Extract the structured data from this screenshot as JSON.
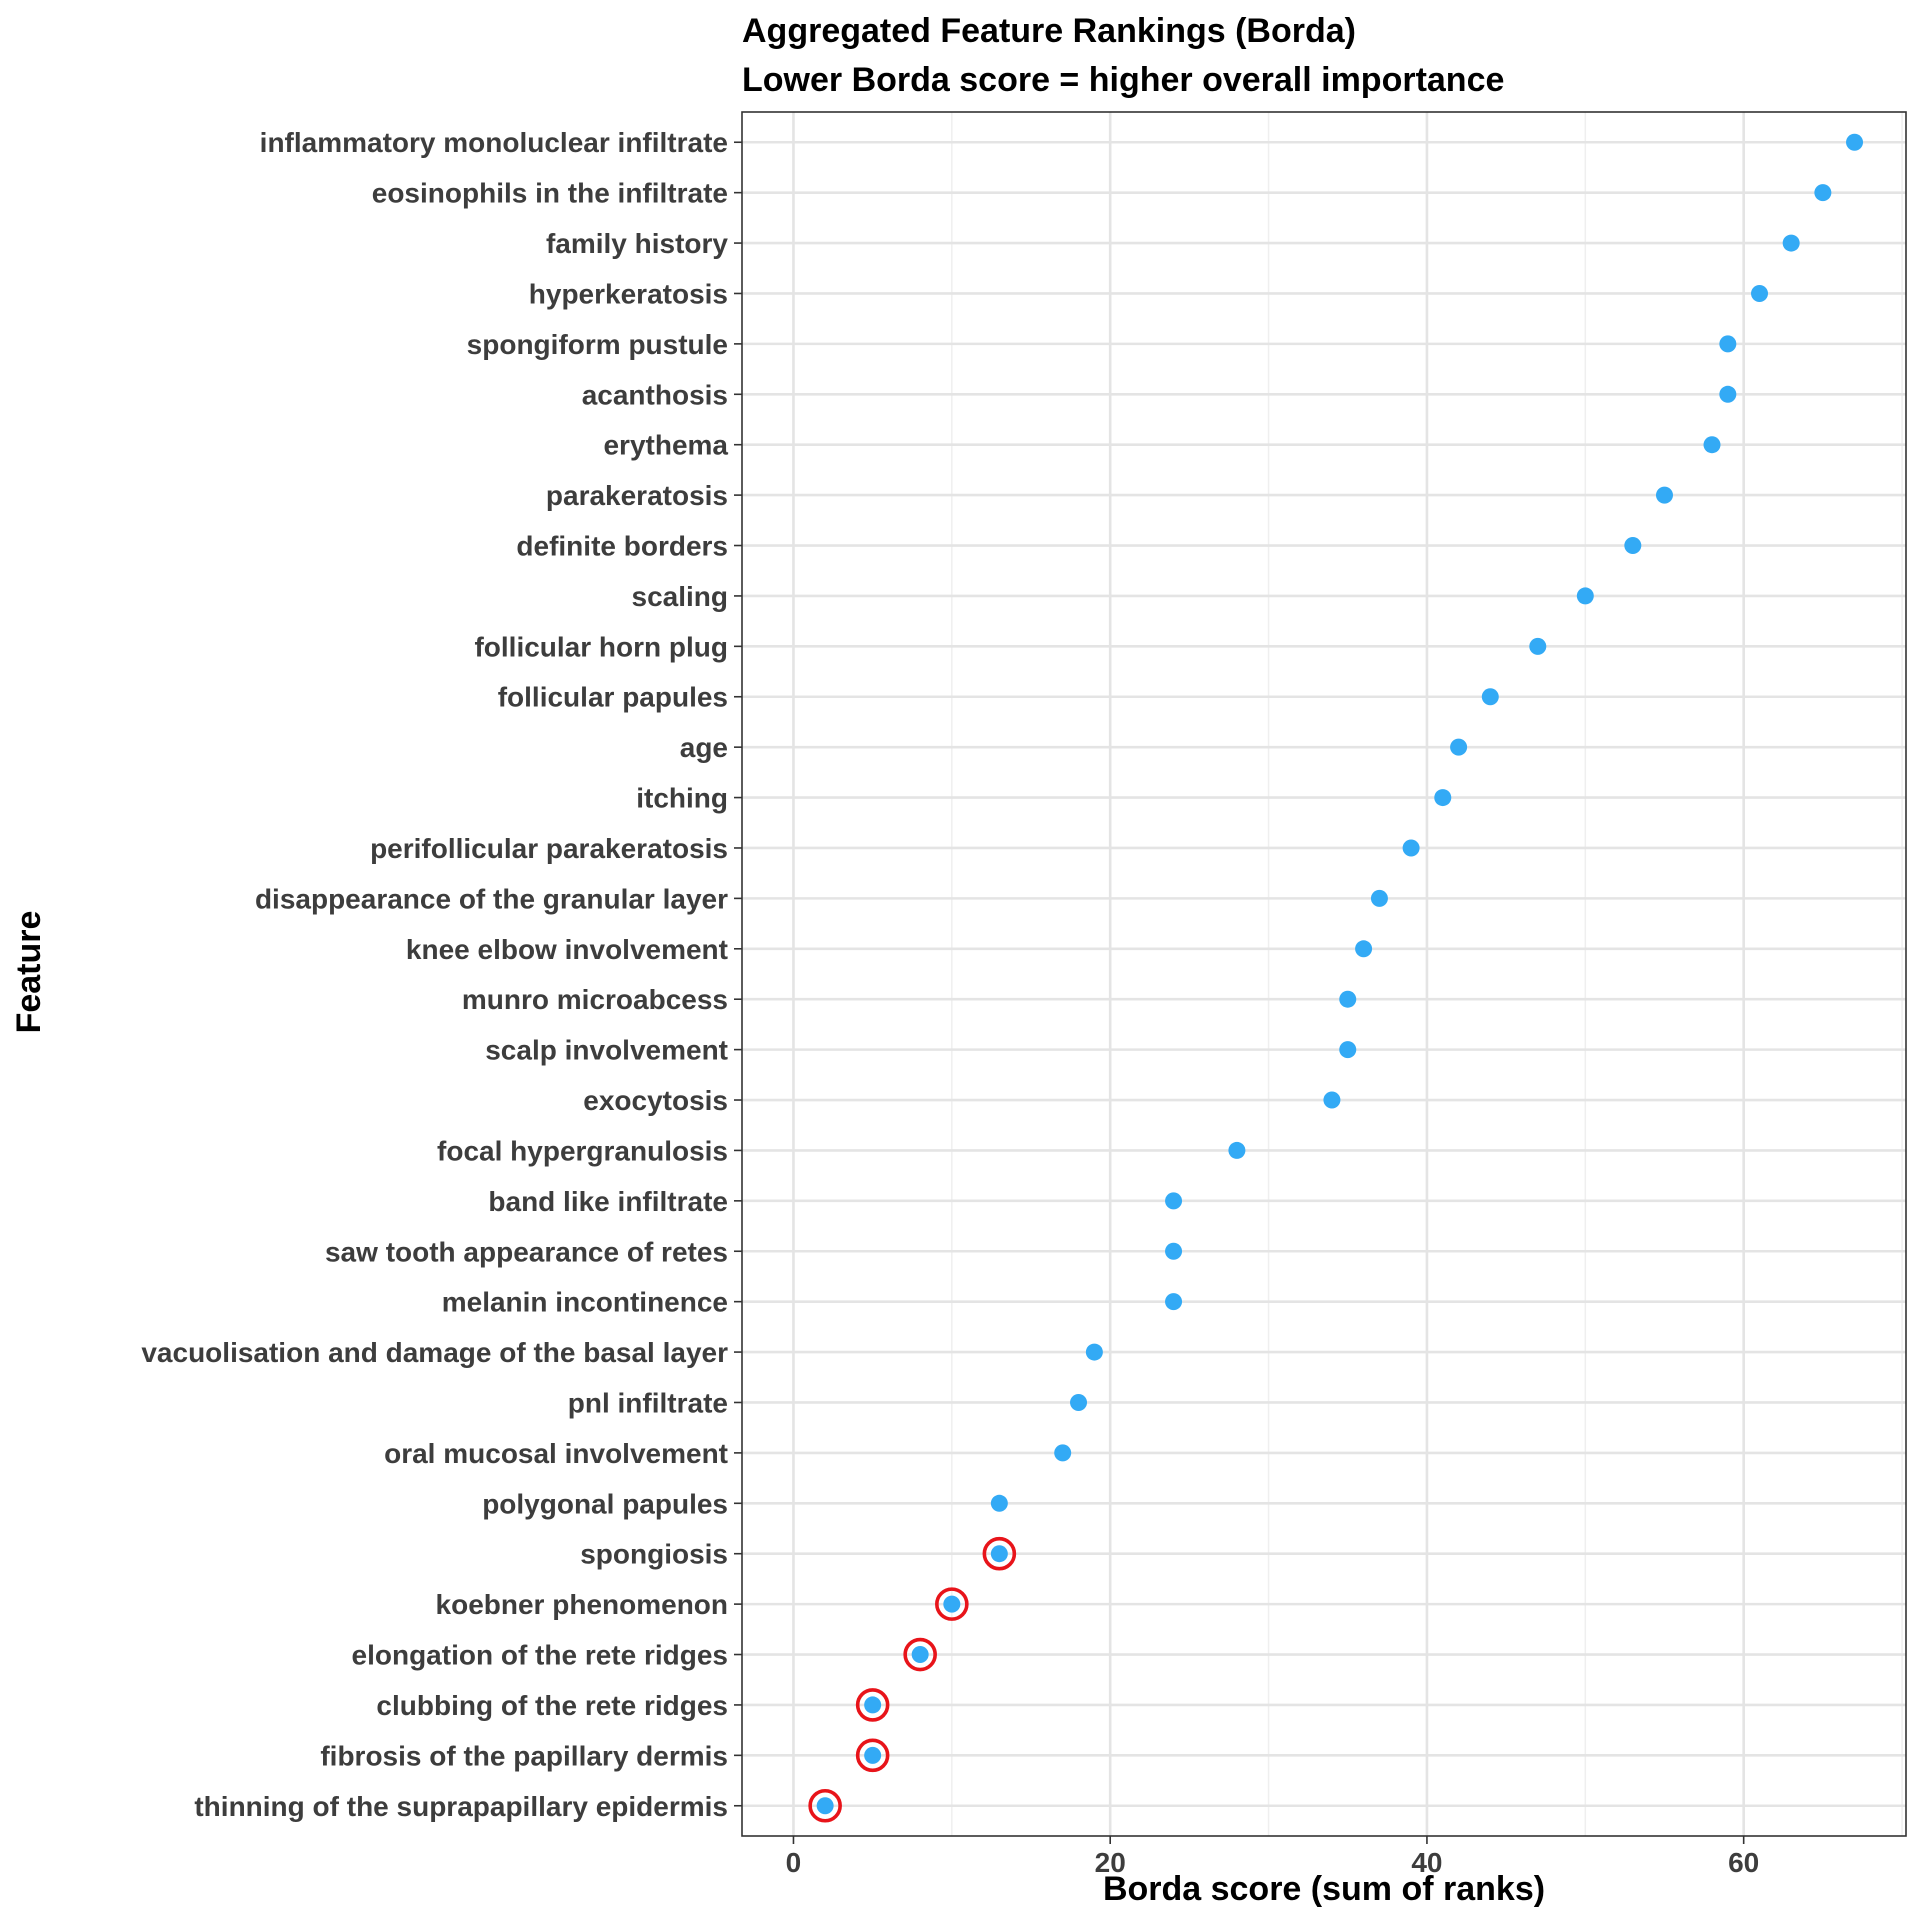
{
  "chart_data": {
    "type": "scatter",
    "title": "Aggregated Feature Rankings (Borda)",
    "subtitle": "Lower Borda score = higher overall importance",
    "xlabel": "Borda score (sum of ranks)",
    "ylabel": "Feature",
    "xlim": [
      -3.25,
      70.25
    ],
    "xticks": [
      0,
      20,
      40,
      60
    ],
    "grid": true,
    "point_color": "#33aaf5",
    "highlight_color": "#e8141a",
    "points": [
      {
        "feature": "inflammatory monoluclear infiltrate",
        "score": 67,
        "highlight": false
      },
      {
        "feature": "eosinophils in the infiltrate",
        "score": 65,
        "highlight": false
      },
      {
        "feature": "family history",
        "score": 63,
        "highlight": false
      },
      {
        "feature": "hyperkeratosis",
        "score": 61,
        "highlight": false
      },
      {
        "feature": "spongiform pustule",
        "score": 59,
        "highlight": false
      },
      {
        "feature": "acanthosis",
        "score": 59,
        "highlight": false
      },
      {
        "feature": "erythema",
        "score": 58,
        "highlight": false
      },
      {
        "feature": "parakeratosis",
        "score": 55,
        "highlight": false
      },
      {
        "feature": "definite borders",
        "score": 53,
        "highlight": false
      },
      {
        "feature": "scaling",
        "score": 50,
        "highlight": false
      },
      {
        "feature": "follicular horn plug",
        "score": 47,
        "highlight": false
      },
      {
        "feature": "follicular papules",
        "score": 44,
        "highlight": false
      },
      {
        "feature": "age",
        "score": 42,
        "highlight": false
      },
      {
        "feature": "itching",
        "score": 41,
        "highlight": false
      },
      {
        "feature": "perifollicular parakeratosis",
        "score": 39,
        "highlight": false
      },
      {
        "feature": "disappearance of the granular layer",
        "score": 37,
        "highlight": false
      },
      {
        "feature": "knee elbow involvement",
        "score": 36,
        "highlight": false
      },
      {
        "feature": "munro microabcess",
        "score": 35,
        "highlight": false
      },
      {
        "feature": "scalp involvement",
        "score": 35,
        "highlight": false
      },
      {
        "feature": "exocytosis",
        "score": 34,
        "highlight": false
      },
      {
        "feature": "focal hypergranulosis",
        "score": 28,
        "highlight": false
      },
      {
        "feature": "band like infiltrate",
        "score": 24,
        "highlight": false
      },
      {
        "feature": "saw tooth appearance of retes",
        "score": 24,
        "highlight": false
      },
      {
        "feature": "melanin incontinence",
        "score": 24,
        "highlight": false
      },
      {
        "feature": "vacuolisation and damage of the basal layer",
        "score": 19,
        "highlight": false
      },
      {
        "feature": "pnl infiltrate",
        "score": 18,
        "highlight": false
      },
      {
        "feature": "oral mucosal involvement",
        "score": 17,
        "highlight": false
      },
      {
        "feature": "polygonal papules",
        "score": 13,
        "highlight": false
      },
      {
        "feature": "spongiosis",
        "score": 13,
        "highlight": true
      },
      {
        "feature": "koebner phenomenon",
        "score": 10,
        "highlight": true
      },
      {
        "feature": "elongation of the rete ridges",
        "score": 8,
        "highlight": true
      },
      {
        "feature": "clubbing of the rete ridges",
        "score": 5,
        "highlight": true
      },
      {
        "feature": "fibrosis of the papillary dermis",
        "score": 5,
        "highlight": true
      },
      {
        "feature": "thinning of the suprapapillary epidermis",
        "score": 2,
        "highlight": true
      }
    ]
  }
}
